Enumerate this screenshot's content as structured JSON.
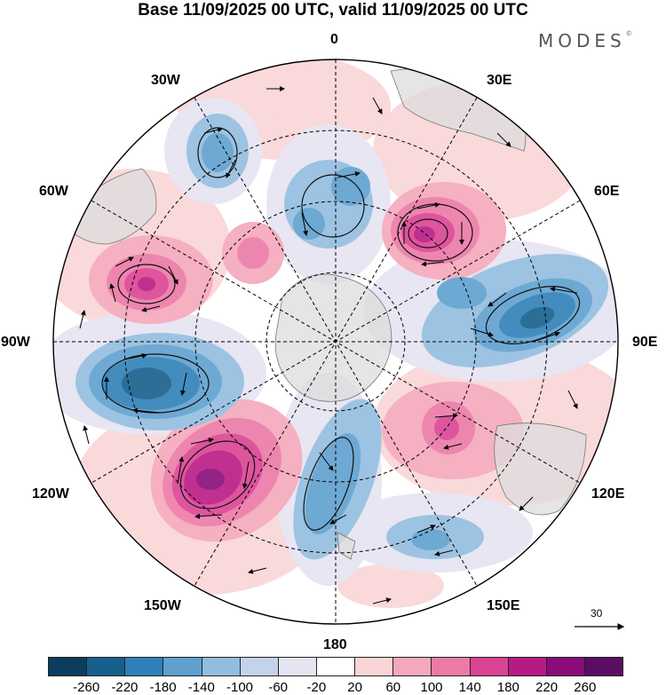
{
  "title": "Base 11/09/2025 00 UTC, valid 11/09/2025 00 UTC",
  "brand": "MODES",
  "brand_mark": "©",
  "longitude_labels": {
    "n0": "0",
    "e30": "30E",
    "e60": "60E",
    "e90": "90E",
    "e120": "120E",
    "e150": "150E",
    "s180": "180",
    "w150": "150W",
    "w120": "120W",
    "w90": "90W",
    "w60": "60W",
    "w30": "30W"
  },
  "reference_vector": {
    "value": "30"
  },
  "colorbar": {
    "colors": [
      "#0c3d5e",
      "#175f8c",
      "#2f80b8",
      "#5fa0cf",
      "#93bddf",
      "#c3d3ea",
      "#e5e4f1",
      "#ffffff",
      "#fad5d6",
      "#f5a8bb",
      "#ec7aa7",
      "#db4393",
      "#b81a85",
      "#8a0b7a",
      "#5a0e63"
    ],
    "ticks": [
      "-260",
      "-220",
      "-180",
      "-140",
      "-100",
      "-60",
      "-20",
      "20",
      "60",
      "100",
      "140",
      "180",
      "220",
      "260"
    ]
  }
}
